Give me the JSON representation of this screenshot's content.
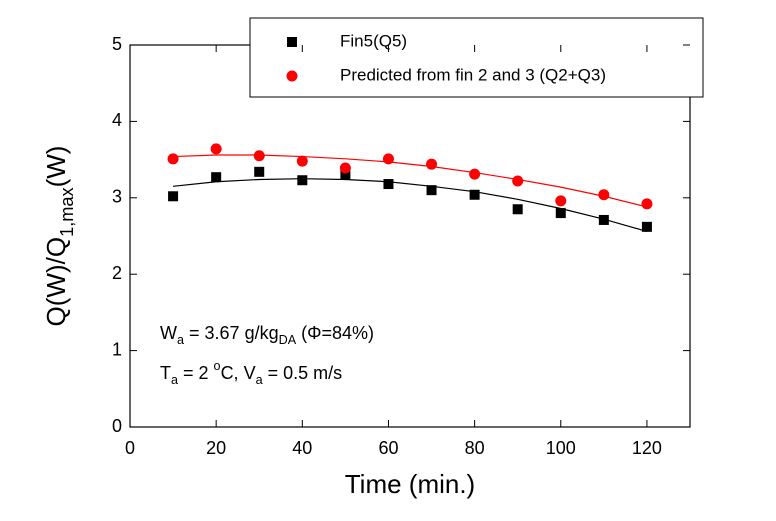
{
  "chart_data": {
    "type": "scatter",
    "x_label": "Time (min.)",
    "y_label_runs": [
      {
        "text": "Q(W)/Q"
      },
      {
        "sub": "1,max"
      },
      {
        "text": "(W)"
      }
    ],
    "x": [
      10,
      20,
      30,
      40,
      50,
      60,
      70,
      80,
      90,
      100,
      110,
      120
    ],
    "series": [
      {
        "name": "Fin5(Q5)",
        "color": "#000000",
        "marker": "square",
        "values": [
          3.02,
          3.27,
          3.34,
          3.23,
          3.3,
          3.18,
          3.1,
          3.04,
          2.85,
          2.8,
          2.71,
          2.62
        ],
        "fit_values": [
          3.15,
          3.21,
          3.24,
          3.25,
          3.24,
          3.21,
          3.15,
          3.08,
          2.98,
          2.86,
          2.72,
          2.56
        ]
      },
      {
        "name": "Predicted from fin 2 and 3 (Q2+Q3)",
        "color": "#ff0000",
        "marker": "circle",
        "values": [
          3.51,
          3.64,
          3.55,
          3.48,
          3.39,
          3.51,
          3.44,
          3.31,
          3.22,
          2.96,
          3.04,
          2.92
        ],
        "fit_values": [
          3.54,
          3.56,
          3.56,
          3.54,
          3.51,
          3.47,
          3.41,
          3.33,
          3.24,
          3.14,
          3.02,
          2.88
        ]
      }
    ],
    "xlim": [
      0,
      130
    ],
    "xticks": [
      0,
      20,
      40,
      60,
      80,
      100,
      120
    ],
    "ylim": [
      0,
      5
    ],
    "yticks": [
      0,
      1,
      2,
      3,
      4,
      5
    ],
    "grid": false,
    "annotations": [
      {
        "runs": [
          {
            "text": "W"
          },
          {
            "sub": "a"
          },
          {
            "text": " = 3.67 g/kg"
          },
          {
            "sub": "DA"
          },
          {
            "text": " (Φ=84%)"
          }
        ]
      },
      {
        "runs": [
          {
            "text": "T"
          },
          {
            "sub": "a"
          },
          {
            "text": " = 2 "
          },
          {
            "sup": "o"
          },
          {
            "text": "C, V"
          },
          {
            "sub": "a"
          },
          {
            "text": " = 0.5 m/s"
          }
        ]
      }
    ]
  }
}
